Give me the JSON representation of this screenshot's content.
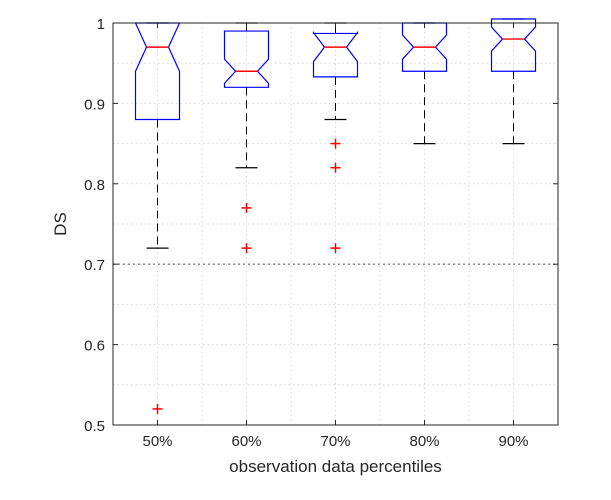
{
  "chart_data": {
    "type": "box",
    "notched": true,
    "categories": [
      "50%",
      "60%",
      "70%",
      "80%",
      "90%"
    ],
    "xlabel": "observation data percentiles",
    "ylabel": "DS",
    "ylim": [
      0.5,
      1.0
    ],
    "yticks": [
      0.5,
      0.6,
      0.7,
      0.8,
      0.9,
      1.0
    ],
    "ytick_labels": [
      "0.5",
      "0.6",
      "0.7",
      "0.8",
      "0.9",
      "1"
    ],
    "grid": true,
    "threshold_line": 0.7,
    "boxes": [
      {
        "category": "50%",
        "whisker_low": 0.72,
        "q1": 0.88,
        "median": 0.97,
        "q3": 1.0,
        "whisker_high": 1.0,
        "notch_low": 0.94,
        "notch_high": 1.0,
        "outliers": [
          0.52
        ]
      },
      {
        "category": "60%",
        "whisker_low": 0.82,
        "q1": 0.92,
        "median": 0.94,
        "q3": 0.99,
        "whisker_high": 1.0,
        "notch_low": 0.925,
        "notch_high": 0.955,
        "outliers": [
          0.77,
          0.72
        ]
      },
      {
        "category": "70%",
        "whisker_low": 0.88,
        "q1": 0.933,
        "median": 0.97,
        "q3": 0.987,
        "whisker_high": 1.0,
        "notch_low": 0.952,
        "notch_high": 0.988,
        "outliers": [
          0.85,
          0.82,
          0.72
        ]
      },
      {
        "category": "80%",
        "whisker_low": 0.85,
        "q1": 0.94,
        "median": 0.97,
        "q3": 1.0,
        "whisker_high": 1.0,
        "notch_low": 0.955,
        "notch_high": 0.985,
        "outliers": []
      },
      {
        "category": "90%",
        "whisker_low": 0.85,
        "q1": 0.94,
        "median": 0.98,
        "q3": 1.005,
        "whisker_high": 1.005,
        "notch_low": 0.965,
        "notch_high": 0.995,
        "outliers": []
      }
    ],
    "colors": {
      "box": "#0000ff",
      "median": "#ff0000",
      "whisker": "#000000",
      "outlier": "#ff0000",
      "grid": "#d9d9d9",
      "threshold": "#808080"
    }
  }
}
